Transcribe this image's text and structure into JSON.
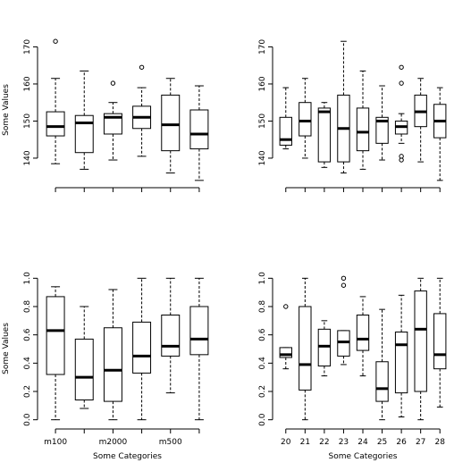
{
  "chart_data": [
    {
      "type": "boxplot",
      "title": "",
      "xlabel": "",
      "ylabel": "Some Values",
      "ylim": [
        133,
        173
      ],
      "yticks": [
        140,
        150,
        160,
        170
      ],
      "categories": [
        "",
        "",
        "",
        "",
        "",
        ""
      ],
      "boxes": [
        {
          "whisker_low": 138.5,
          "q1": 146,
          "median": 148.5,
          "q3": 152.5,
          "whisker_high": 161.5,
          "outliers": [
            171.5
          ]
        },
        {
          "whisker_low": 137,
          "q1": 141.5,
          "median": 149.5,
          "q3": 151.5,
          "whisker_high": 163.5,
          "outliers": []
        },
        {
          "whisker_low": 139.5,
          "q1": 146.5,
          "median": 151,
          "q3": 152,
          "whisker_high": 155,
          "outliers": [
            160.2
          ]
        },
        {
          "whisker_low": 140.5,
          "q1": 148,
          "median": 151,
          "q3": 154,
          "whisker_high": 159,
          "outliers": [
            164.5
          ]
        },
        {
          "whisker_low": 136,
          "q1": 142,
          "median": 149,
          "q3": 157,
          "whisker_high": 161.5,
          "outliers": []
        },
        {
          "whisker_low": 134,
          "q1": 142.5,
          "median": 146.5,
          "q3": 153,
          "whisker_high": 159.5,
          "outliers": []
        }
      ]
    },
    {
      "type": "boxplot",
      "title": "",
      "xlabel": "",
      "ylabel": "",
      "ylim": [
        133,
        173
      ],
      "yticks": [
        140,
        150,
        160,
        170
      ],
      "categories": [
        "",
        "",
        "",
        "",
        "",
        "",
        "",
        "",
        ""
      ],
      "boxes": [
        {
          "whisker_low": 142.5,
          "q1": 143.5,
          "median": 145,
          "q3": 151,
          "whisker_high": 159,
          "outliers": []
        },
        {
          "whisker_low": 140,
          "q1": 146,
          "median": 150,
          "q3": 155,
          "whisker_high": 161.5,
          "outliers": []
        },
        {
          "whisker_low": 137.5,
          "q1": 139,
          "median": 152.5,
          "q3": 153.5,
          "whisker_high": 155,
          "outliers": []
        },
        {
          "whisker_low": 136,
          "q1": 139,
          "median": 148,
          "q3": 157,
          "whisker_high": 171.5,
          "outliers": []
        },
        {
          "whisker_low": 137,
          "q1": 142,
          "median": 147,
          "q3": 153.5,
          "whisker_high": 163.5,
          "outliers": []
        },
        {
          "whisker_low": 139.5,
          "q1": 144,
          "median": 150,
          "q3": 151,
          "whisker_high": 159.5,
          "outliers": []
        },
        {
          "whisker_low": 144,
          "q1": 146.5,
          "median": 148.5,
          "q3": 150,
          "whisker_high": 152,
          "outliers": [
            164.5,
            160.2,
            140.5,
            139.5
          ]
        },
        {
          "whisker_low": 139,
          "q1": 148.5,
          "median": 152.5,
          "q3": 157,
          "whisker_high": 161.5,
          "outliers": []
        },
        {
          "whisker_low": 134,
          "q1": 145.5,
          "median": 150,
          "q3": 154.5,
          "whisker_high": 159,
          "outliers": []
        }
      ]
    },
    {
      "type": "boxplot",
      "title": "",
      "xlabel": "Some Categories",
      "ylabel": "Some Values",
      "ylim": [
        -0.04,
        1.04
      ],
      "yticks": [
        0.0,
        0.2,
        0.4,
        0.6,
        0.8,
        1.0
      ],
      "categories": [
        "m100",
        "",
        "m2000",
        "",
        "m500",
        ""
      ],
      "boxes": [
        {
          "whisker_low": 0.0,
          "q1": 0.32,
          "median": 0.63,
          "q3": 0.87,
          "whisker_high": 0.94,
          "outliers": []
        },
        {
          "whisker_low": 0.08,
          "q1": 0.14,
          "median": 0.3,
          "q3": 0.57,
          "whisker_high": 0.8,
          "outliers": []
        },
        {
          "whisker_low": 0.0,
          "q1": 0.13,
          "median": 0.35,
          "q3": 0.65,
          "whisker_high": 0.92,
          "outliers": []
        },
        {
          "whisker_low": 0.0,
          "q1": 0.33,
          "median": 0.45,
          "q3": 0.69,
          "whisker_high": 1.0,
          "outliers": []
        },
        {
          "whisker_low": 0.19,
          "q1": 0.45,
          "median": 0.52,
          "q3": 0.74,
          "whisker_high": 1.0,
          "outliers": []
        },
        {
          "whisker_low": 0.0,
          "q1": 0.46,
          "median": 0.57,
          "q3": 0.8,
          "whisker_high": 1.0,
          "outliers": []
        }
      ]
    },
    {
      "type": "boxplot",
      "title": "",
      "xlabel": "Some Categories",
      "ylabel": "",
      "ylim": [
        -0.04,
        1.04
      ],
      "yticks": [
        0.0,
        0.2,
        0.4,
        0.6,
        0.8,
        1.0
      ],
      "categories": [
        "20",
        "21",
        "22",
        "23",
        "24",
        "25",
        "26",
        "27",
        "28"
      ],
      "boxes": [
        {
          "whisker_low": 0.36,
          "q1": 0.44,
          "median": 0.46,
          "q3": 0.51,
          "whisker_high": 0.51,
          "outliers": [
            0.8
          ]
        },
        {
          "whisker_low": 0.0,
          "q1": 0.21,
          "median": 0.39,
          "q3": 0.8,
          "whisker_high": 1.0,
          "outliers": []
        },
        {
          "whisker_low": 0.31,
          "q1": 0.38,
          "median": 0.52,
          "q3": 0.64,
          "whisker_high": 0.7,
          "outliers": []
        },
        {
          "whisker_low": 0.39,
          "q1": 0.45,
          "median": 0.55,
          "q3": 0.63,
          "whisker_high": 0.63,
          "outliers": [
            1.0,
            0.95
          ]
        },
        {
          "whisker_low": 0.31,
          "q1": 0.49,
          "median": 0.57,
          "q3": 0.74,
          "whisker_high": 0.87,
          "outliers": []
        },
        {
          "whisker_low": 0.0,
          "q1": 0.13,
          "median": 0.22,
          "q3": 0.41,
          "whisker_high": 0.78,
          "outliers": []
        },
        {
          "whisker_low": 0.02,
          "q1": 0.19,
          "median": 0.53,
          "q3": 0.62,
          "whisker_high": 0.88,
          "outliers": []
        },
        {
          "whisker_low": 0.0,
          "q1": 0.2,
          "median": 0.64,
          "q3": 0.91,
          "whisker_high": 1.0,
          "outliers": []
        },
        {
          "whisker_low": 0.09,
          "q1": 0.36,
          "median": 0.46,
          "q3": 0.75,
          "whisker_high": 1.0,
          "outliers": []
        }
      ]
    }
  ]
}
